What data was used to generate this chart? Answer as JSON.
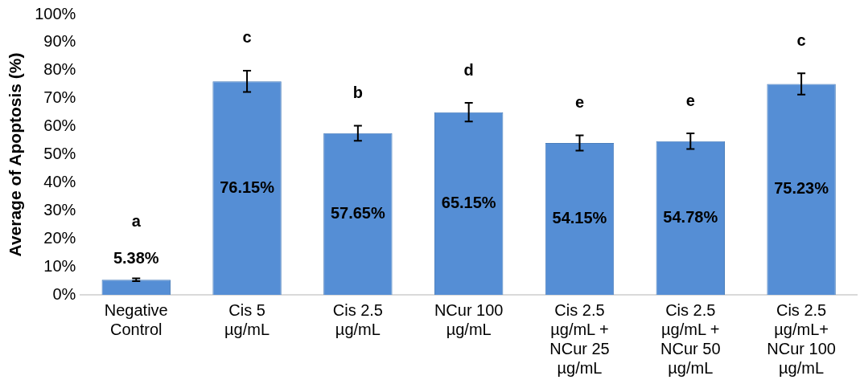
{
  "chart_data": {
    "type": "bar",
    "ylabel": "Average of Apoptosis (%)",
    "categories": [
      "Negative Control",
      "Cis 5 µg/mL",
      "Cis 2.5 µg/mL",
      "NCur 100 µg/mL",
      "Cis 2.5 µg/mL + NCur 25 µg/mL",
      "Cis 2.5 µg/mL + NCur 50 µg/mL",
      "Cis 2.5 µg/mL+ NCur 100 µg/mL"
    ],
    "values": [
      5.38,
      76.15,
      57.65,
      65.15,
      54.15,
      54.78,
      75.23
    ],
    "value_labels": [
      "5.38%",
      "76.15%",
      "57.65%",
      "65.15%",
      "54.15%",
      "54.78%",
      "75.23%"
    ],
    "errors": [
      0.5,
      3.8,
      2.7,
      3.3,
      2.7,
      2.8,
      3.8
    ],
    "color": "#558ed5",
    "ylim": [
      0,
      100
    ],
    "yticks": [
      {
        "value": 0,
        "label": "0%"
      },
      {
        "value": 10,
        "label": "10%"
      },
      {
        "value": 20,
        "label": "20%"
      },
      {
        "value": 30,
        "label": "30%"
      },
      {
        "value": 40,
        "label": "40%"
      },
      {
        "value": 50,
        "label": "50%"
      },
      {
        "value": 60,
        "label": "60%"
      },
      {
        "value": 70,
        "label": "70%"
      },
      {
        "value": 80,
        "label": "80%"
      },
      {
        "value": 90,
        "label": "90%"
      },
      {
        "value": 100,
        "label": "100%"
      }
    ],
    "annotations": [
      "a",
      "c",
      "b",
      "d",
      "e",
      "e",
      "c"
    ],
    "grid": false,
    "legend": false
  }
}
